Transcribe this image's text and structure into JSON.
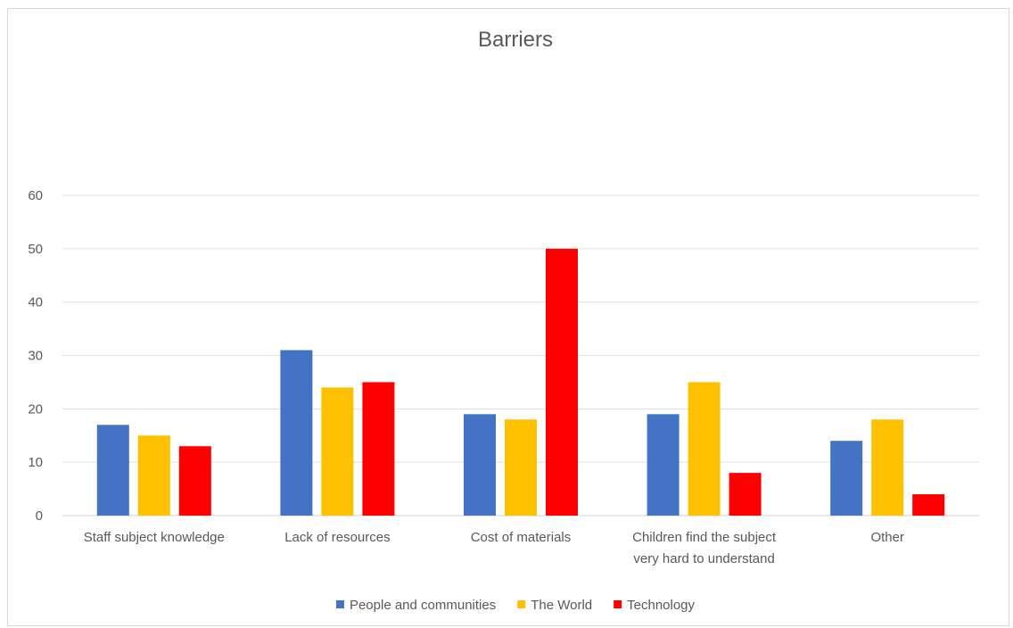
{
  "chart_data": {
    "type": "bar",
    "title": "Barriers",
    "xlabel": "",
    "ylabel": "",
    "ylim": [
      0,
      60
    ],
    "yticks": [
      0,
      10,
      20,
      30,
      40,
      50,
      60
    ],
    "grid": true,
    "legend_position": "bottom",
    "categories": [
      [
        "Staff subject knowledge"
      ],
      [
        "Lack of resources"
      ],
      [
        "Cost of materials"
      ],
      [
        "Children find the subject",
        "very hard to understand"
      ],
      [
        "Other"
      ]
    ],
    "series": [
      {
        "name": "People and communities",
        "color": "#4472c4",
        "values": [
          17,
          31,
          19,
          19,
          14
        ]
      },
      {
        "name": "The World",
        "color": "#ffc000",
        "values": [
          15,
          24,
          18,
          25,
          18
        ]
      },
      {
        "name": "Technology",
        "color": "#ff0000",
        "values": [
          13,
          25,
          50,
          8,
          4
        ]
      }
    ]
  }
}
